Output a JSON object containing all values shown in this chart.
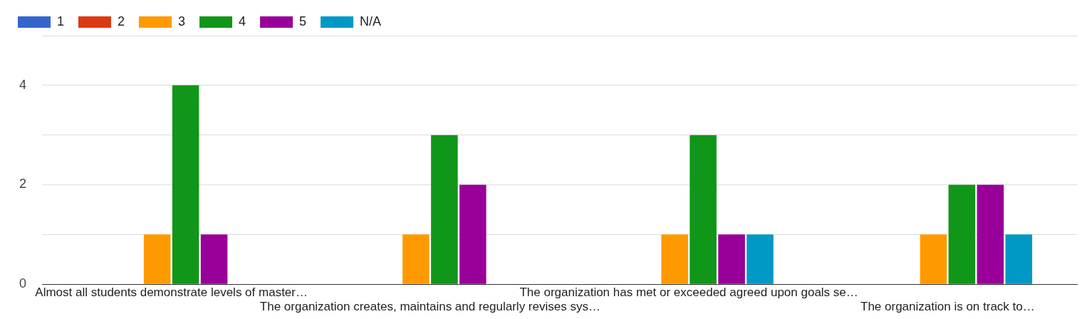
{
  "chart_data": {
    "type": "bar",
    "categories": [
      "Almost all students demonstrate levels of master…",
      "The organization creates, maintains and regularly revises sys…",
      "The organization has met or exceeded agreed upon goals se…",
      "The organization is on track to…"
    ],
    "series": [
      {
        "name": "1",
        "color": "#3366cc",
        "values": [
          0,
          0,
          0,
          0
        ]
      },
      {
        "name": "2",
        "color": "#dc3912",
        "values": [
          0,
          0,
          0,
          0
        ]
      },
      {
        "name": "3",
        "color": "#ff9900",
        "values": [
          1,
          1,
          1,
          1
        ]
      },
      {
        "name": "4",
        "color": "#109618",
        "values": [
          4,
          3,
          3,
          2
        ]
      },
      {
        "name": "5",
        "color": "#990099",
        "values": [
          1,
          2,
          1,
          2
        ]
      },
      {
        "name": "N/A",
        "color": "#0099c6",
        "values": [
          0,
          0,
          1,
          1
        ]
      }
    ],
    "ylim": [
      0,
      5
    ],
    "yticks": [
      0,
      {
        "value": 1,
        "label": null
      },
      2,
      {
        "value": 3,
        "label": null
      },
      4,
      {
        "value": 5,
        "label": null
      }
    ],
    "grid": "y",
    "legend": "top left"
  }
}
